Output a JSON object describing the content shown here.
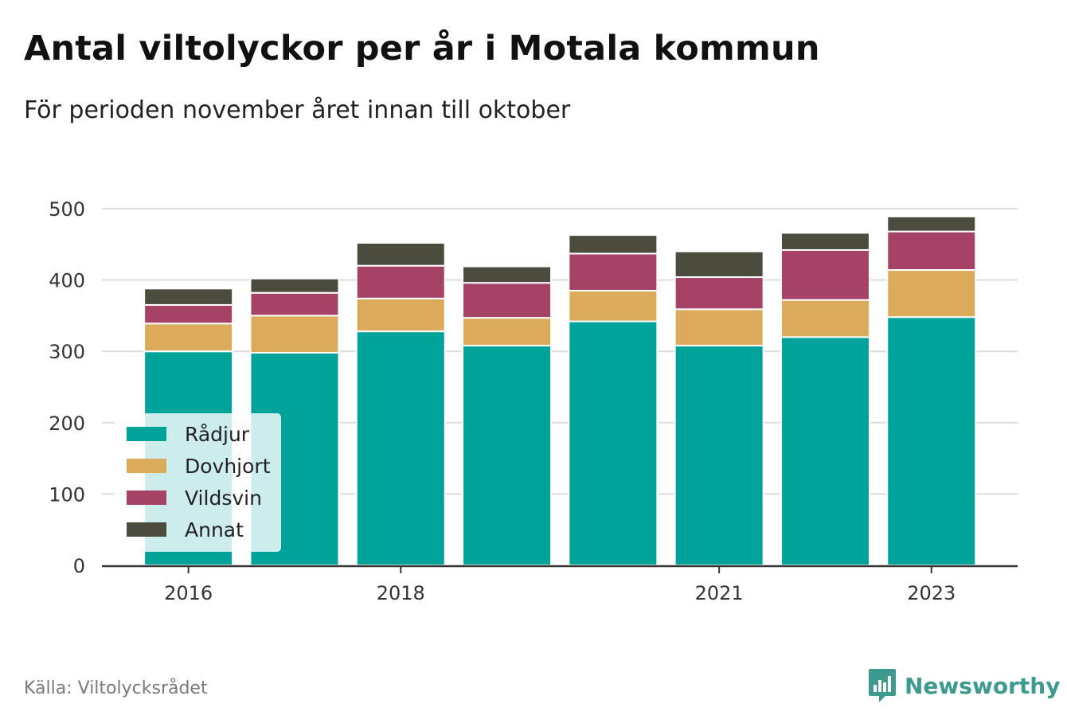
{
  "title": "Antal viltolyckor per år i Motala kommun",
  "subtitle": "För perioden november året innan till oktober",
  "source": "Källa: Viltolycksrådet",
  "brand": "Newsworthy",
  "colors": {
    "Rådjur": "#00a39a",
    "Dovhjort": "#dbab5b",
    "Vildsvin": "#a54266",
    "Annat": "#4c4c3e",
    "brand": "#3d9a8f"
  },
  "chart_data": {
    "type": "bar",
    "stacked": true,
    "categories": [
      "2016",
      "2017",
      "2018",
      "2019",
      "2020",
      "2021",
      "2022",
      "2023"
    ],
    "x_tick_labels": [
      "2016",
      "2018",
      "2021",
      "2023"
    ],
    "series": [
      {
        "name": "Rådjur",
        "values": [
          300,
          298,
          328,
          308,
          342,
          308,
          320,
          348
        ]
      },
      {
        "name": "Dovhjort",
        "values": [
          39,
          52,
          46,
          39,
          43,
          51,
          52,
          66
        ]
      },
      {
        "name": "Vildsvin",
        "values": [
          26,
          32,
          46,
          49,
          52,
          45,
          70,
          54
        ]
      },
      {
        "name": "Annat",
        "values": [
          23,
          20,
          32,
          23,
          26,
          36,
          24,
          21
        ]
      }
    ],
    "yticks": [
      0,
      100,
      200,
      300,
      400,
      500
    ],
    "ylim": [
      0,
      500
    ],
    "grid": true,
    "legend": "bottom-left"
  }
}
